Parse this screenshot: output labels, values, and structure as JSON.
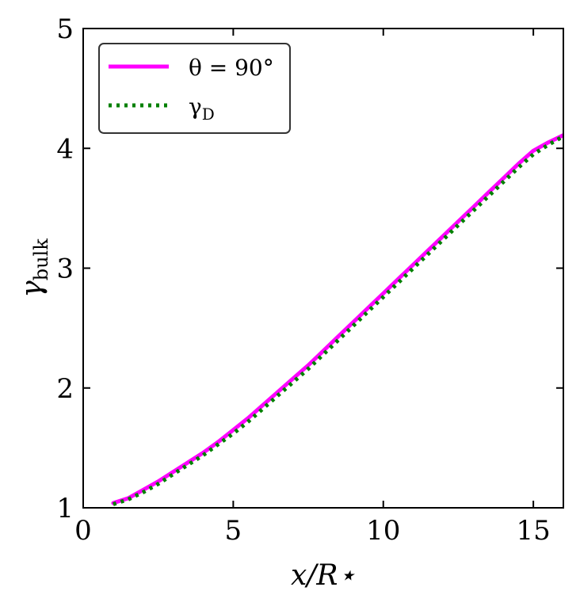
{
  "chart_data": {
    "type": "line",
    "title": "",
    "xlabel": "x/R⋆",
    "ylabel_main": "γ",
    "ylabel_sub": "bulk",
    "xlim": [
      0,
      16
    ],
    "ylim": [
      1,
      5
    ],
    "xticks": [
      0,
      5,
      10,
      15
    ],
    "yticks": [
      1,
      2,
      3,
      4,
      5
    ],
    "xtick_labels": [
      "0",
      "5",
      "10",
      "15"
    ],
    "ytick_labels": [
      "1",
      "2",
      "3",
      "4",
      "5"
    ],
    "grid": false,
    "legend_position": "top-left",
    "series": [
      {
        "name": "θ = 90°",
        "legend_main": "θ = 90°",
        "legend_sub": "",
        "color": "#ff00ff",
        "style": "solid",
        "x": [
          1.0,
          1.5,
          2.0,
          2.5,
          3.0,
          3.5,
          4.0,
          4.5,
          5.0,
          5.5,
          6.0,
          6.5,
          7.0,
          7.5,
          8.0,
          8.5,
          9.0,
          9.5,
          10.0,
          10.5,
          11.0,
          11.5,
          12.0,
          12.5,
          13.0,
          13.5,
          14.0,
          14.5,
          15.0,
          15.5,
          16.0
        ],
        "y": [
          1.04,
          1.08,
          1.15,
          1.22,
          1.3,
          1.38,
          1.46,
          1.55,
          1.65,
          1.75,
          1.86,
          1.97,
          2.08,
          2.19,
          2.31,
          2.43,
          2.55,
          2.67,
          2.79,
          2.91,
          3.03,
          3.15,
          3.27,
          3.39,
          3.51,
          3.63,
          3.75,
          3.87,
          3.98,
          4.05,
          4.11
        ]
      },
      {
        "name": "γD",
        "legend_main": "γ",
        "legend_sub": "D",
        "color": "#008000",
        "style": "dotted",
        "x": [
          1.0,
          1.5,
          2.0,
          2.5,
          3.0,
          3.5,
          4.0,
          4.5,
          5.0,
          5.5,
          6.0,
          6.5,
          7.0,
          7.5,
          8.0,
          8.5,
          9.0,
          9.5,
          10.0,
          10.5,
          11.0,
          11.5,
          12.0,
          12.5,
          13.0,
          13.5,
          14.0,
          14.5,
          15.0,
          15.5,
          16.0
        ],
        "y": [
          1.03,
          1.07,
          1.13,
          1.2,
          1.28,
          1.36,
          1.44,
          1.53,
          1.62,
          1.72,
          1.83,
          1.94,
          2.05,
          2.16,
          2.28,
          2.4,
          2.52,
          2.64,
          2.76,
          2.88,
          3.0,
          3.12,
          3.24,
          3.36,
          3.48,
          3.6,
          3.72,
          3.84,
          3.95,
          4.03,
          4.1
        ]
      }
    ]
  }
}
